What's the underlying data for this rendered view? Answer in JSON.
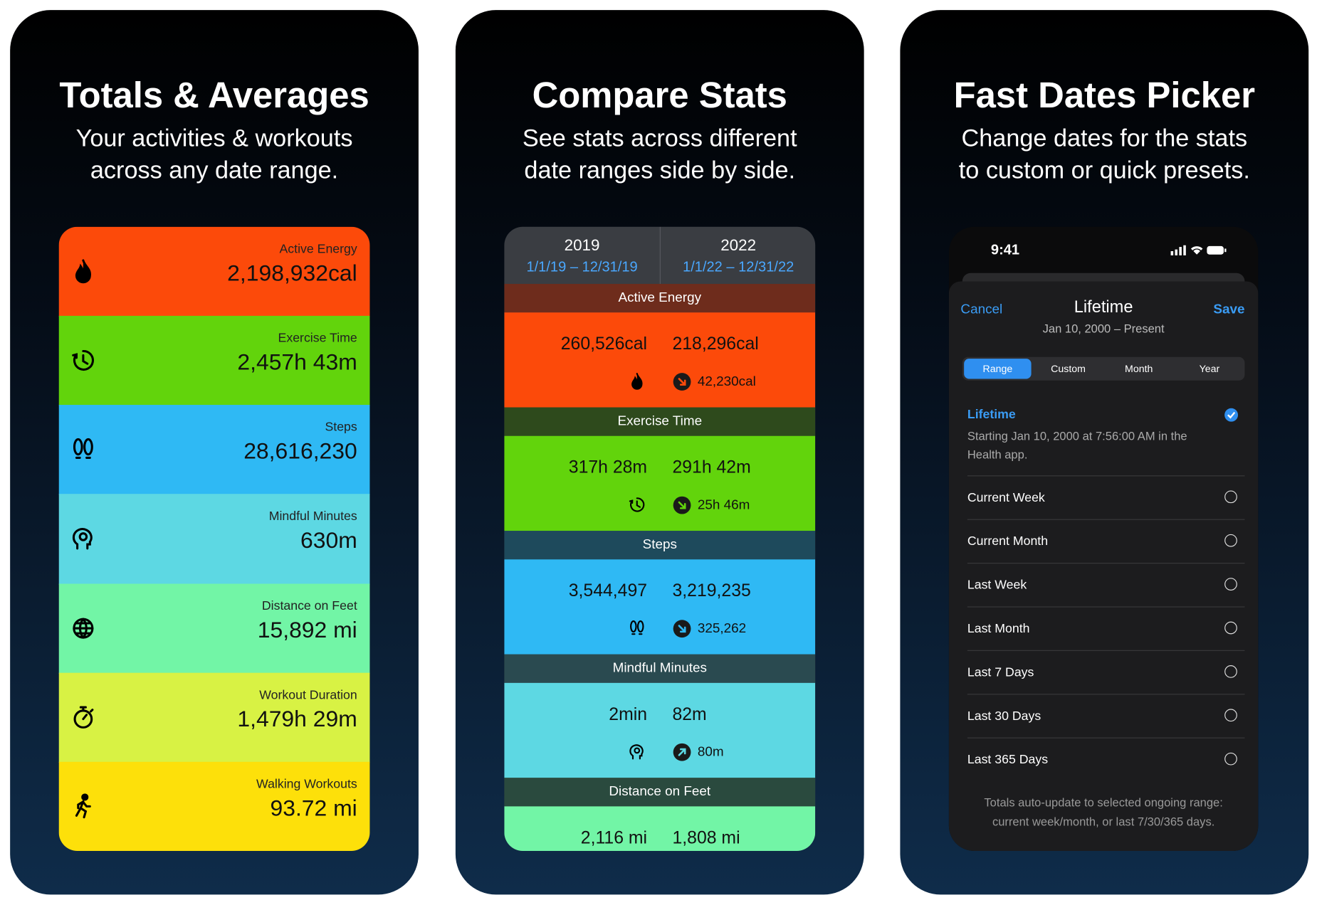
{
  "panels": [
    {
      "title": "Totals & Averages",
      "subtitle": [
        "Your activities & workouts",
        "across any date range."
      ],
      "items": [
        {
          "label": "Active Energy",
          "value": "2,198,932cal",
          "color": "#fc4a0a"
        },
        {
          "label": "Exercise Time",
          "value": "2,457h 43m",
          "color": "#62d40c"
        },
        {
          "label": "Steps",
          "value": "28,616,230",
          "color": "#2fb9f4"
        },
        {
          "label": "Mindful Minutes",
          "value": "630m",
          "color": "#5dd8e3"
        },
        {
          "label": "Distance on Feet",
          "value": "15,892 mi",
          "color": "#72f5a6"
        },
        {
          "label": "Workout Duration",
          "value": "1,479h 29m",
          "color": "#d8f244"
        },
        {
          "label": "Walking Workouts",
          "value": "93.72 mi",
          "color": "#fde00a"
        }
      ]
    },
    {
      "title": "Compare Stats",
      "subtitle": [
        "See stats across different",
        "date ranges side by side."
      ],
      "columns": [
        {
          "year": "2019",
          "range": "1/1/19 – 12/31/19"
        },
        {
          "year": "2022",
          "range": "1/1/22 – 12/31/22"
        }
      ],
      "sections": [
        {
          "label": "Active Energy",
          "values": [
            "260,526cal",
            "218,296cal"
          ],
          "change": "42,230cal",
          "trend": "down",
          "color": "#fc4a0a",
          "bar": "#6e2c1c"
        },
        {
          "label": "Exercise Time",
          "values": [
            "317h 28m",
            "291h 42m"
          ],
          "change": "25h 46m",
          "trend": "down",
          "color": "#62d40c",
          "bar": "#2e4a1c"
        },
        {
          "label": "Steps",
          "values": [
            "3,544,497",
            "3,219,235"
          ],
          "change": "325,262",
          "trend": "down",
          "color": "#2fb9f4",
          "bar": "#1e4a5c"
        },
        {
          "label": "Mindful Minutes",
          "values": [
            "2min",
            "82m"
          ],
          "change": "80m",
          "trend": "up",
          "color": "#5dd8e3",
          "bar": "#2a4a50"
        },
        {
          "label": "Distance on Feet",
          "values": [
            "2,116 mi",
            "1,808 mi"
          ],
          "color": "#72f5a6",
          "bar": "#2a4a3e"
        }
      ]
    },
    {
      "title": "Fast Dates Picker",
      "subtitle": [
        "Change dates for the stats",
        "to custom or quick presets."
      ],
      "phone": {
        "time": "9:41",
        "cancel": "Cancel",
        "heading": "Lifetime",
        "subheading": "Jan 10, 2000 – Present",
        "save": "Save",
        "tabs": [
          "Range",
          "Custom",
          "Month",
          "Year"
        ],
        "selected": {
          "label": "Lifetime",
          "description": [
            "Starting Jan 10, 2000 at 7:56:00 AM in the",
            "Health app."
          ]
        },
        "options": [
          "Current Week",
          "Current Month",
          "Last Week",
          "Last Month",
          "Last 7 Days",
          "Last 30 Days",
          "Last 365 Days"
        ],
        "footer": [
          "Totals auto-update to selected ongoing range:",
          "current week/month, or last 7/30/365 days."
        ]
      }
    }
  ]
}
